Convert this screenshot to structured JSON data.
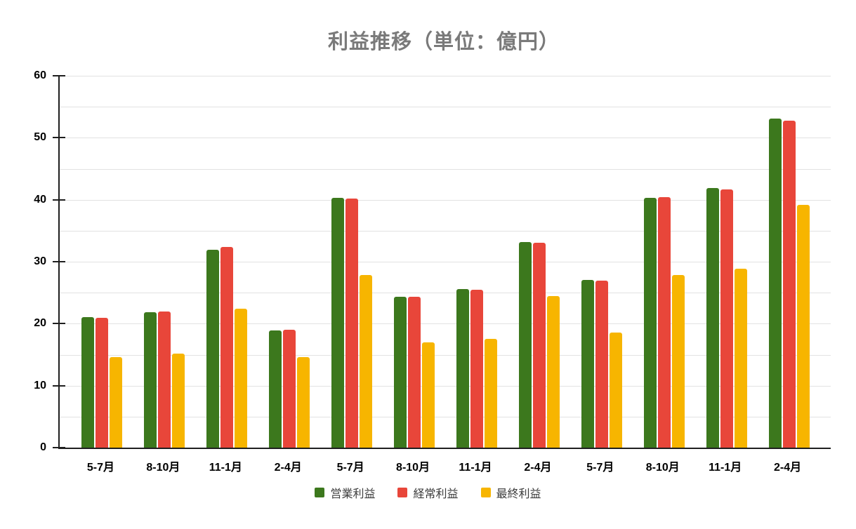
{
  "title": "利益推移（単位：億円）",
  "chart_data": {
    "type": "bar",
    "title": "利益推移（単位：億円）",
    "xlabel": "",
    "ylabel": "",
    "unit": "億円",
    "categories": [
      "5-7月",
      "8-10月",
      "11-1月",
      "2-4月",
      "5-7月",
      "8-10月",
      "11-1月",
      "2-4月",
      "5-7月",
      "8-10月",
      "11-1月",
      "2-4月"
    ],
    "series": [
      {
        "name": "営業利益",
        "color": "#3c781d",
        "values": [
          21.1,
          21.8,
          31.9,
          18.9,
          40.3,
          24.3,
          25.6,
          33.2,
          27.1,
          40.3,
          41.9,
          53.1
        ]
      },
      {
        "name": "経常利益",
        "color": "#e8463a",
        "values": [
          21.0,
          22.0,
          32.4,
          19.0,
          40.2,
          24.3,
          25.5,
          33.1,
          27.0,
          40.4,
          41.7,
          52.8
        ]
      },
      {
        "name": "最終利益",
        "color": "#f7b500",
        "values": [
          14.6,
          15.2,
          22.4,
          14.6,
          27.9,
          17.0,
          17.6,
          24.5,
          18.6,
          27.9,
          28.9,
          39.2
        ]
      }
    ],
    "ylim": [
      0,
      60
    ],
    "yticks": [
      0,
      10,
      20,
      30,
      40,
      50,
      60
    ],
    "grid_step": 5,
    "grid": true,
    "legend_position": "bottom"
  },
  "colors": {
    "grid": "#e2e2e2",
    "axis": "#1f1f1f",
    "title_text": "#7a7a7a",
    "tick_label_text": "#000000",
    "legend_text": "#3c3c3c"
  }
}
